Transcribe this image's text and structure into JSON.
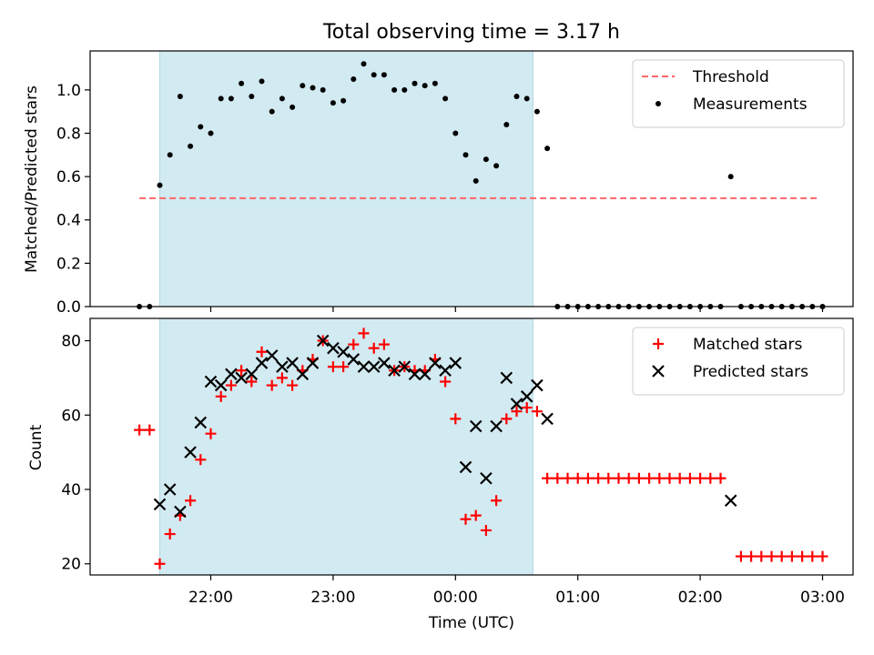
{
  "chart_data": [
    {
      "type": "scatter",
      "title": "Total observing time = 3.17 h",
      "xlabel": "",
      "ylabel": "Matched/Predicted stars",
      "ylim": [
        0,
        1.18
      ],
      "yticks": [
        "0.0",
        "0.2",
        "0.4",
        "0.6",
        "0.8",
        "1.0"
      ],
      "highlight_span": {
        "from": "21:35",
        "to": "00:38",
        "color": "#add8e6"
      },
      "legend_position": "top-right",
      "threshold": {
        "name": "Threshold",
        "y": 0.5,
        "x_from": "21:25",
        "x_to": "02:58",
        "color": "#ff6666",
        "style": "dashed"
      },
      "series": [
        {
          "name": "Measurements",
          "marker": "dot",
          "color": "#000000",
          "points": [
            [
              "21:25",
              0.0
            ],
            [
              "21:30",
              0.0
            ],
            [
              "21:35",
              0.56
            ],
            [
              "21:40",
              0.7
            ],
            [
              "21:45",
              0.97
            ],
            [
              "21:50",
              0.74
            ],
            [
              "21:55",
              0.83
            ],
            [
              "22:00",
              0.8
            ],
            [
              "22:05",
              0.96
            ],
            [
              "22:10",
              0.96
            ],
            [
              "22:15",
              1.03
            ],
            [
              "22:20",
              0.97
            ],
            [
              "22:25",
              1.04
            ],
            [
              "22:30",
              0.9
            ],
            [
              "22:35",
              0.96
            ],
            [
              "22:40",
              0.92
            ],
            [
              "22:45",
              1.02
            ],
            [
              "22:50",
              1.01
            ],
            [
              "22:55",
              1.0
            ],
            [
              "23:00",
              0.94
            ],
            [
              "23:05",
              0.95
            ],
            [
              "23:10",
              1.05
            ],
            [
              "23:15",
              1.12
            ],
            [
              "23:20",
              1.07
            ],
            [
              "23:25",
              1.07
            ],
            [
              "23:30",
              1.0
            ],
            [
              "23:35",
              1.0
            ],
            [
              "23:40",
              1.03
            ],
            [
              "23:45",
              1.02
            ],
            [
              "23:50",
              1.03
            ],
            [
              "23:55",
              0.96
            ],
            [
              "00:00",
              0.8
            ],
            [
              "00:05",
              0.7
            ],
            [
              "00:10",
              0.58
            ],
            [
              "00:15",
              0.68
            ],
            [
              "00:20",
              0.65
            ],
            [
              "00:25",
              0.84
            ],
            [
              "00:30",
              0.97
            ],
            [
              "00:35",
              0.96
            ],
            [
              "00:40",
              0.9
            ],
            [
              "00:45",
              0.73
            ],
            [
              "00:50",
              0.0
            ],
            [
              "00:55",
              0.0
            ],
            [
              "01:00",
              0.0
            ],
            [
              "01:05",
              0.0
            ],
            [
              "01:10",
              0.0
            ],
            [
              "01:15",
              0.0
            ],
            [
              "01:20",
              0.0
            ],
            [
              "01:25",
              0.0
            ],
            [
              "01:30",
              0.0
            ],
            [
              "01:35",
              0.0
            ],
            [
              "01:40",
              0.0
            ],
            [
              "01:45",
              0.0
            ],
            [
              "01:50",
              0.0
            ],
            [
              "01:55",
              0.0
            ],
            [
              "02:00",
              0.0
            ],
            [
              "02:05",
              0.0
            ],
            [
              "02:10",
              0.0
            ],
            [
              "02:15",
              0.6
            ],
            [
              "02:20",
              0.0
            ],
            [
              "02:25",
              0.0
            ],
            [
              "02:30",
              0.0
            ],
            [
              "02:35",
              0.0
            ],
            [
              "02:40",
              0.0
            ],
            [
              "02:45",
              0.0
            ],
            [
              "02:50",
              0.0
            ],
            [
              "02:55",
              0.0
            ],
            [
              "03:00",
              0.0
            ]
          ]
        }
      ]
    },
    {
      "type": "scatter",
      "title": "",
      "xlabel": "Time (UTC)",
      "ylabel": "Count",
      "ylim": [
        17,
        86
      ],
      "yticks": [
        "20",
        "40",
        "60",
        "80"
      ],
      "xticks": [
        "22:00",
        "23:00",
        "00:00",
        "01:00",
        "02:00",
        "03:00"
      ],
      "highlight_span": {
        "from": "21:35",
        "to": "00:38",
        "color": "#add8e6"
      },
      "legend_position": "top-right",
      "series": [
        {
          "name": "Matched stars",
          "marker": "plus",
          "color": "#ff0000",
          "points": [
            [
              "21:25",
              56
            ],
            [
              "21:30",
              56
            ],
            [
              "21:35",
              20
            ],
            [
              "21:40",
              28
            ],
            [
              "21:45",
              33
            ],
            [
              "21:50",
              37
            ],
            [
              "21:55",
              48
            ],
            [
              "22:00",
              55
            ],
            [
              "22:05",
              65
            ],
            [
              "22:10",
              68
            ],
            [
              "22:15",
              72
            ],
            [
              "22:20",
              69
            ],
            [
              "22:25",
              77
            ],
            [
              "22:30",
              68
            ],
            [
              "22:35",
              70
            ],
            [
              "22:40",
              68
            ],
            [
              "22:45",
              72
            ],
            [
              "22:50",
              75
            ],
            [
              "22:55",
              80
            ],
            [
              "23:00",
              73
            ],
            [
              "23:05",
              73
            ],
            [
              "23:10",
              79
            ],
            [
              "23:15",
              82
            ],
            [
              "23:20",
              78
            ],
            [
              "23:25",
              79
            ],
            [
              "23:30",
              72
            ],
            [
              "23:35",
              73
            ],
            [
              "23:40",
              72
            ],
            [
              "23:45",
              72
            ],
            [
              "23:50",
              75
            ],
            [
              "23:55",
              69
            ],
            [
              "00:00",
              59
            ],
            [
              "00:05",
              32
            ],
            [
              "00:10",
              33
            ],
            [
              "00:15",
              29
            ],
            [
              "00:20",
              37
            ],
            [
              "00:25",
              59
            ],
            [
              "00:30",
              61
            ],
            [
              "00:35",
              62
            ],
            [
              "00:40",
              61
            ],
            [
              "00:45",
              43
            ],
            [
              "00:50",
              43
            ],
            [
              "00:55",
              43
            ],
            [
              "01:00",
              43
            ],
            [
              "01:05",
              43
            ],
            [
              "01:10",
              43
            ],
            [
              "01:15",
              43
            ],
            [
              "01:20",
              43
            ],
            [
              "01:25",
              43
            ],
            [
              "01:30",
              43
            ],
            [
              "01:35",
              43
            ],
            [
              "01:40",
              43
            ],
            [
              "01:45",
              43
            ],
            [
              "01:50",
              43
            ],
            [
              "01:55",
              43
            ],
            [
              "02:00",
              43
            ],
            [
              "02:05",
              43
            ],
            [
              "02:10",
              43
            ],
            [
              "02:20",
              22
            ],
            [
              "02:25",
              22
            ],
            [
              "02:30",
              22
            ],
            [
              "02:35",
              22
            ],
            [
              "02:40",
              22
            ],
            [
              "02:45",
              22
            ],
            [
              "02:50",
              22
            ],
            [
              "02:55",
              22
            ],
            [
              "03:00",
              22
            ]
          ]
        },
        {
          "name": "Predicted stars",
          "marker": "x",
          "color": "#000000",
          "points": [
            [
              "21:35",
              36
            ],
            [
              "21:40",
              40
            ],
            [
              "21:45",
              34
            ],
            [
              "21:50",
              50
            ],
            [
              "21:55",
              58
            ],
            [
              "22:00",
              69
            ],
            [
              "22:05",
              68
            ],
            [
              "22:10",
              71
            ],
            [
              "22:15",
              70
            ],
            [
              "22:20",
              71
            ],
            [
              "22:25",
              74
            ],
            [
              "22:30",
              76
            ],
            [
              "22:35",
              73
            ],
            [
              "22:40",
              74
            ],
            [
              "22:45",
              71
            ],
            [
              "22:50",
              74
            ],
            [
              "22:55",
              80
            ],
            [
              "23:00",
              78
            ],
            [
              "23:05",
              77
            ],
            [
              "23:10",
              75
            ],
            [
              "23:15",
              73
            ],
            [
              "23:20",
              73
            ],
            [
              "23:25",
              74
            ],
            [
              "23:30",
              72
            ],
            [
              "23:35",
              73
            ],
            [
              "23:40",
              71
            ],
            [
              "23:45",
              71
            ],
            [
              "23:50",
              74
            ],
            [
              "23:55",
              72
            ],
            [
              "00:00",
              74
            ],
            [
              "00:05",
              46
            ],
            [
              "00:10",
              57
            ],
            [
              "00:15",
              43
            ],
            [
              "00:20",
              57
            ],
            [
              "00:25",
              70
            ],
            [
              "00:30",
              63
            ],
            [
              "00:35",
              65
            ],
            [
              "00:40",
              68
            ],
            [
              "00:45",
              59
            ],
            [
              "02:15",
              37
            ]
          ]
        }
      ]
    }
  ]
}
